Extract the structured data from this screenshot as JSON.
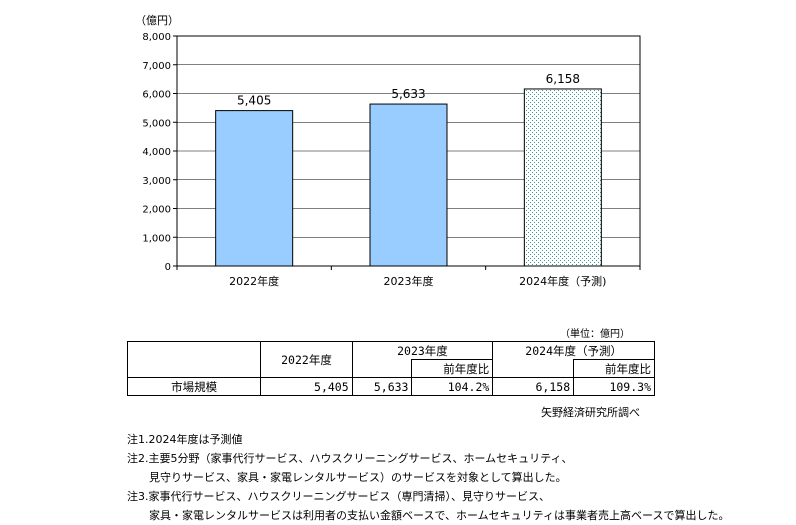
{
  "chart_data": {
    "type": "bar",
    "y_unit": "（億円）",
    "categories": [
      "2022年度",
      "2023年度",
      "2024年度（予測)"
    ],
    "values": [
      5405,
      5633,
      6158
    ],
    "value_labels": [
      "5,405",
      "5,633",
      "6,158"
    ],
    "forecast_index": 2,
    "ylim": [
      0,
      8000
    ],
    "yticks": [
      "0",
      "1,000",
      "2,000",
      "3,000",
      "4,000",
      "5,000",
      "6,000",
      "7,000",
      "8,000"
    ],
    "grid": true,
    "bar_color": "#99ccff",
    "forecast_pattern_color": "#339999"
  },
  "table": {
    "unit": "（単位：億円）",
    "year1": "2022年度",
    "year2": "2023年度",
    "year3": "2024年度（予測）",
    "yoy_label": "前年度比",
    "row_label": "市場規模",
    "v2022": "5,405",
    "v2023": "5,633",
    "yoy2023": "104.2%",
    "v2024": "6,158",
    "yoy2024": "109.3%"
  },
  "source": "矢野経済研究所調べ",
  "notes": [
    "注1.2024年度は予測値",
    "注2.主要5分野（家事代行サービス、ハウスクリーニングサービス、ホームセキュリティ、",
    "　　見守りサービス、家具・家電レンタルサービス）のサービスを対象として算出した。",
    "注3.家事代行サービス、ハウスクリーニングサービス（専門清掃）、見守りサービス、",
    "　　家具・家電レンタルサービスは利用者の支払い金額ベースで、ホームセキュリティは事業者売上高ベースで算出した。"
  ]
}
